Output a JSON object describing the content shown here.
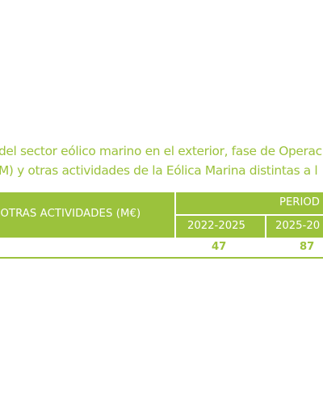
{
  "caption": {
    "line1": "del sector eólico marino en el exterior, fase de Operac",
    "line2": "M) y otras actividades de la Eólica Marina distintas a l"
  },
  "table": {
    "row_header": "B OTRAS ACTIVIDADES (M€)",
    "period_header": "PERIOD",
    "years": [
      "2022-2025",
      "2025-20"
    ],
    "values": [
      "47",
      "87"
    ]
  },
  "colors": {
    "accent": "#9bc23c",
    "header_text": "#ffffff"
  }
}
